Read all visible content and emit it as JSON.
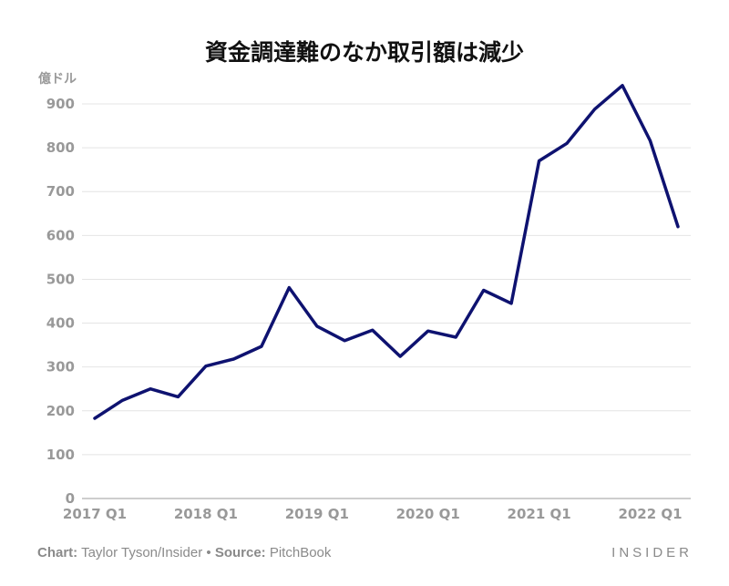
{
  "chart_data": {
    "type": "line",
    "title": "資金調達難のなか取引額は減少",
    "ylabel": "億ドル",
    "xlabel": "",
    "ylim": [
      0,
      950
    ],
    "yticks": [
      0,
      100,
      200,
      300,
      400,
      500,
      600,
      700,
      800,
      900
    ],
    "x_tick_labels": [
      "2017 Q1",
      "2018 Q1",
      "2019 Q1",
      "2020 Q1",
      "2021 Q1",
      "2022 Q1"
    ],
    "x": [
      "2017 Q1",
      "2017 Q2",
      "2017 Q3",
      "2017 Q4",
      "2018 Q1",
      "2018 Q2",
      "2018 Q3",
      "2018 Q4",
      "2019 Q1",
      "2019 Q2",
      "2019 Q3",
      "2019 Q4",
      "2020 Q1",
      "2020 Q2",
      "2020 Q3",
      "2020 Q4",
      "2021 Q1",
      "2021 Q2",
      "2021 Q3",
      "2021 Q4",
      "2022 Q1",
      "2022 Q2"
    ],
    "series": [
      {
        "color": "#0e1270",
        "values": [
          183,
          224,
          250,
          232,
          302,
          318,
          347,
          481,
          393,
          360,
          384,
          324,
          382,
          368,
          475,
          445,
          770,
          810,
          888,
          942,
          816,
          620
        ]
      }
    ],
    "grid": true,
    "legend": "none"
  },
  "footer": {
    "chart_label": "Chart:",
    "chart_author": "Taylor Tyson/Insider",
    "bullet": "•",
    "source_label": "Source:",
    "source": "PitchBook",
    "brand": "INSIDER"
  }
}
